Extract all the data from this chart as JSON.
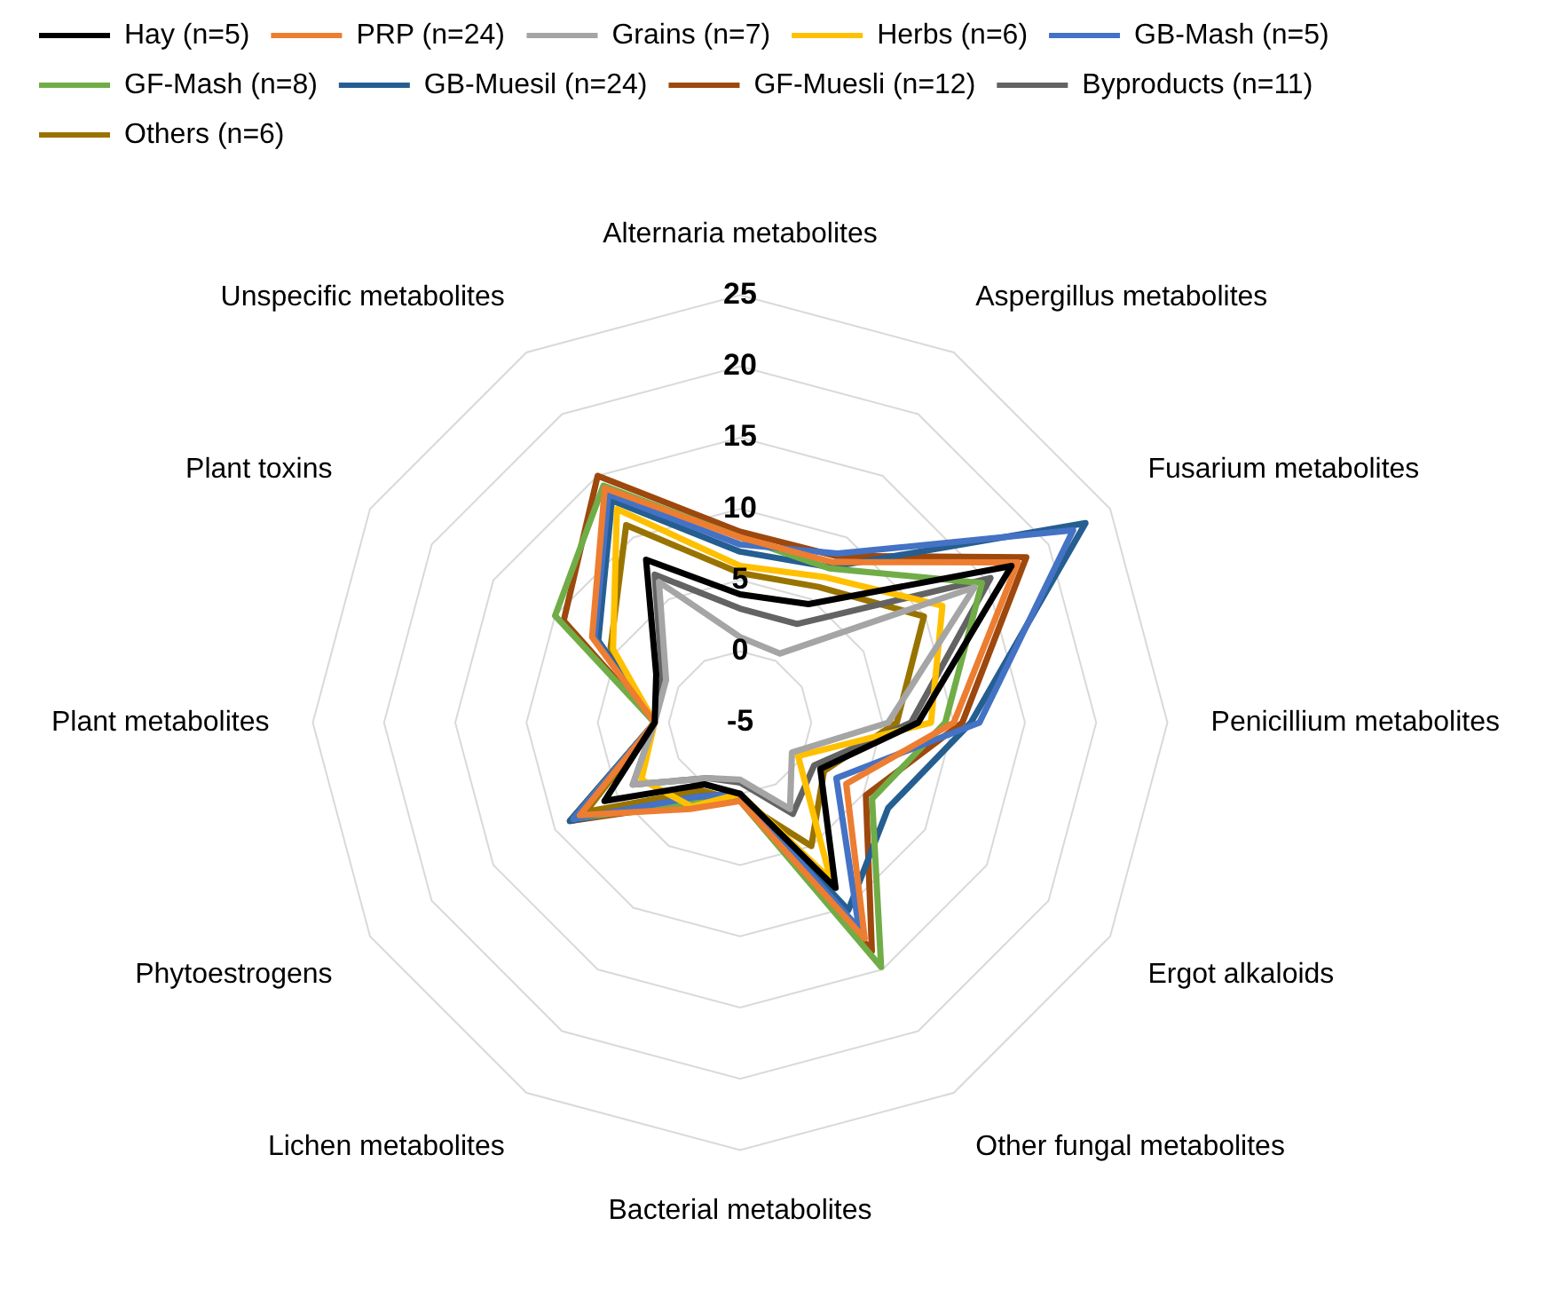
{
  "chart_data": {
    "type": "radar",
    "categories": [
      "Alternaria metabolites",
      "Aspergillus metabolites",
      "Fusarium metabolites",
      "Penicillium metabolites",
      "Ergot alkaloids",
      "Other fungal metabolites",
      "Bacterial metabolites",
      "Lichen metabolites",
      "Phytoestrogens",
      "Plant metabolites",
      "Plant toxins",
      "Unspecific metabolites"
    ],
    "series": [
      {
        "name": "Hay (n=5)",
        "color": "#000000",
        "values": [
          4,
          4.6,
          17,
          7.5,
          1.5,
          8.4,
          0,
          0,
          6,
          1,
          1.8,
          8.2
        ]
      },
      {
        "name": "PRP (n=24)",
        "color": "#ed7d31",
        "values": [
          8,
          8,
          17.5,
          10,
          3.6,
          12.5,
          0.5,
          2,
          8,
          1,
          7,
          14
        ]
      },
      {
        "name": "Grains (n=7)",
        "color": "#a5a5a5",
        "values": [
          1,
          0.6,
          14,
          5.4,
          -0.8,
          2,
          -1,
          -0.5,
          3.7,
          1,
          1,
          6.4
        ]
      },
      {
        "name": "Herbs (n=6)",
        "color": "#ffc000",
        "values": [
          6,
          6.8,
          11.4,
          8.4,
          -0.3,
          7.7,
          0,
          1.8,
          3,
          1,
          5.3,
          12.3
        ]
      },
      {
        "name": "GB-Mash (n=5)",
        "color": "#4472c4",
        "values": [
          7.5,
          8.7,
          22,
          11.8,
          2.8,
          11.7,
          0,
          1,
          8.5,
          1,
          6.8,
          13.5
        ]
      },
      {
        "name": "GF-Mash (n=8)",
        "color": "#70ad47",
        "values": [
          8,
          7.5,
          14.6,
          9.4,
          5.7,
          14.8,
          0.5,
          1.5,
          8.5,
          1,
          10,
          14.2
        ]
      },
      {
        "name": "GB-Muesil (n=24)",
        "color": "#255e91",
        "values": [
          7,
          7.6,
          23,
          11.2,
          7,
          10.2,
          0,
          1,
          8.8,
          1,
          6.5,
          13
        ]
      },
      {
        "name": "GF-Muesli (n=12)",
        "color": "#9e480e",
        "values": [
          8.4,
          8.5,
          18.2,
          10.6,
          5.2,
          13.5,
          0.4,
          1.5,
          8.8,
          1,
          9.3,
          15
        ]
      },
      {
        "name": "Byproducts (n=11)",
        "color": "#636363",
        "values": [
          3,
          3,
          15.3,
          7,
          1,
          2.4,
          -0.8,
          -0.5,
          3.7,
          1,
          1.3,
          7
        ]
      },
      {
        "name": "Others (n=6)",
        "color": "#997300",
        "values": [
          5.5,
          6,
          9.9,
          6,
          1.8,
          5,
          0.5,
          0.5,
          7.5,
          1,
          5.5,
          11
        ]
      }
    ],
    "ylim": [
      -5,
      25
    ],
    "yticks": [
      -5,
      0,
      5,
      10,
      15,
      20,
      25
    ],
    "grid": true,
    "legend": "top",
    "marker": "none",
    "line_style": "solid"
  }
}
